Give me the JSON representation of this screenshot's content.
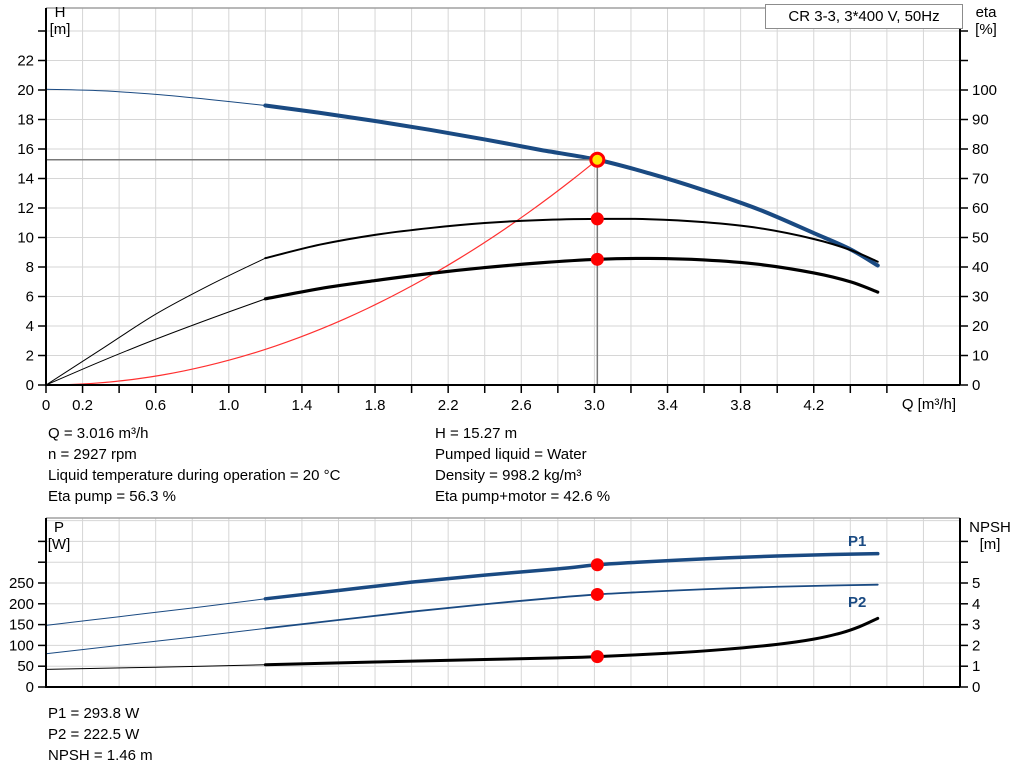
{
  "title_box": "CR 3-3, 3*400 V, 50Hz",
  "colors": {
    "curve_blue": "#1a4a82",
    "curve_black": "#000000",
    "curve_red": "#ff3030",
    "marker_red": "#ff0000",
    "marker_yellow": "#ffe600",
    "grid": "#d6d6d6",
    "axis": "#000000",
    "plot_top_border": "#a0a0a0",
    "crosshair": "#787878",
    "label_blue": "#1a4a82"
  },
  "chart_data": [
    {
      "type": "line",
      "name": "qh-eta-chart",
      "title": "CR 3-3, 3*400 V, 50Hz",
      "x_axis": {
        "label": "Q [m³/h]",
        "min": 0,
        "max": 5,
        "tick_step": 0.2,
        "tick_end": 4.6,
        "grid_step": 0.2,
        "grid_end": 4.8,
        "labeled_values": [
          0,
          0.2,
          0.6,
          1.0,
          1.4,
          1.8,
          2.2,
          2.6,
          3.0,
          3.4,
          3.8,
          4.2
        ],
        "labeled_ticks": [
          "0",
          "0.2",
          "0.6",
          "1.0",
          "1.4",
          "1.8",
          "2.2",
          "2.6",
          "3.0",
          "3.4",
          "3.8",
          "4.2"
        ]
      },
      "left_axis": {
        "label_line1": "H",
        "label_line2": "[m]",
        "min": 0,
        "tick_step": 2,
        "last_labeled": 22,
        "tick_max": 24,
        "grid_max": 24
      },
      "right_axis": {
        "label_line1": "eta",
        "label_line2": "[%]",
        "min": 0,
        "tick_step": 10,
        "last_labeled": 100,
        "tick_max": 120,
        "grid_max": 0
      },
      "series": [
        {
          "name": "system-curve",
          "axis": "left",
          "color_key": "curve_red",
          "width": 1.2,
          "quadratic_through": {
            "q": 3.016,
            "h": 15.27
          }
        },
        {
          "name": "qh-curve",
          "axis": "left",
          "color_key": "curve_blue",
          "width": 4,
          "thin_until": 1.2,
          "points": [
            [
              0,
              20.05
            ],
            [
              0.3,
              19.95
            ],
            [
              0.6,
              19.7
            ],
            [
              0.9,
              19.35
            ],
            [
              1.2,
              18.95
            ],
            [
              1.5,
              18.45
            ],
            [
              1.8,
              17.9
            ],
            [
              2.1,
              17.3
            ],
            [
              2.4,
              16.65
            ],
            [
              2.7,
              15.95
            ],
            [
              3.016,
              15.27
            ],
            [
              3.3,
              14.35
            ],
            [
              3.6,
              13.2
            ],
            [
              3.9,
              11.9
            ],
            [
              4.2,
              10.3
            ],
            [
              4.4,
              9.2
            ],
            [
              4.55,
              8.1
            ]
          ]
        },
        {
          "name": "eta-pump-curve",
          "axis": "right",
          "color_key": "curve_black",
          "width": 2,
          "thin_until": 1.2,
          "points": [
            [
              0,
              0
            ],
            [
              0.3,
              12
            ],
            [
              0.6,
              24
            ],
            [
              0.9,
              34
            ],
            [
              1.2,
              43
            ],
            [
              1.5,
              47.6
            ],
            [
              1.8,
              50.9
            ],
            [
              2.1,
              53.2
            ],
            [
              2.4,
              54.9
            ],
            [
              2.7,
              55.9
            ],
            [
              3.016,
              56.3
            ],
            [
              3.3,
              56.2
            ],
            [
              3.6,
              55.2
            ],
            [
              3.9,
              53.2
            ],
            [
              4.2,
              49.5
            ],
            [
              4.4,
              45.8
            ],
            [
              4.55,
              41.8
            ]
          ]
        },
        {
          "name": "eta-pump-motor-curve",
          "axis": "right",
          "color_key": "curve_black",
          "width": 3.2,
          "thin_until": 1.2,
          "points": [
            [
              0,
              0
            ],
            [
              0.3,
              8
            ],
            [
              0.6,
              15.5
            ],
            [
              0.9,
              22.5
            ],
            [
              1.2,
              29.2
            ],
            [
              1.5,
              32.7
            ],
            [
              1.8,
              35.4
            ],
            [
              2.1,
              37.8
            ],
            [
              2.4,
              39.8
            ],
            [
              2.7,
              41.4
            ],
            [
              3.016,
              42.6
            ],
            [
              3.3,
              42.9
            ],
            [
              3.6,
              42.4
            ],
            [
              3.9,
              40.9
            ],
            [
              4.2,
              38
            ],
            [
              4.4,
              35
            ],
            [
              4.55,
              31.5
            ]
          ]
        }
      ],
      "operating_point": {
        "q": 3.016,
        "h": 15.27
      },
      "marker_points": [
        {
          "q": 3.016,
          "value": 56.3,
          "axis": "right"
        },
        {
          "q": 3.016,
          "value": 42.6,
          "axis": "right"
        }
      ]
    },
    {
      "type": "line",
      "name": "power-npsh-chart",
      "x_axis": {
        "label": "",
        "min": 0,
        "max": 5,
        "grid_step": 0.2,
        "grid_end": 4.8,
        "labeled_values": [],
        "labeled_ticks": []
      },
      "left_axis": {
        "label_line1": "P",
        "label_line2": "[W]",
        "min": 0,
        "tick_step": 50,
        "last_labeled": 250,
        "tick_max": 350,
        "grid_max": 400
      },
      "right_axis": {
        "label_line1": "NPSH",
        "label_line2": "[m]",
        "min": 0,
        "tick_step": 1,
        "last_labeled": 5,
        "tick_max": 7,
        "grid_max": 0
      },
      "series": [
        {
          "name": "p1-curve",
          "label": "P1",
          "axis": "left",
          "color_key": "curve_blue",
          "width": 3.5,
          "thin_until": 1.2,
          "points": [
            [
              0,
              148
            ],
            [
              0.4,
              169
            ],
            [
              0.8,
              190
            ],
            [
              1.2,
              212
            ],
            [
              1.6,
              232
            ],
            [
              2.0,
              252
            ],
            [
              2.4,
              269
            ],
            [
              2.8,
              284
            ],
            [
              3.016,
              293.8
            ],
            [
              3.2,
              299
            ],
            [
              3.6,
              308
            ],
            [
              4.0,
              315
            ],
            [
              4.3,
              318.5
            ],
            [
              4.55,
              320.5
            ]
          ]
        },
        {
          "name": "p2-curve",
          "label": "P2",
          "axis": "left",
          "color_key": "curve_blue",
          "width": 1.8,
          "thin_until": 1.2,
          "points": [
            [
              0,
              80
            ],
            [
              0.4,
              100
            ],
            [
              0.8,
              120
            ],
            [
              1.2,
              141
            ],
            [
              1.6,
              161
            ],
            [
              2.0,
              181
            ],
            [
              2.4,
              199
            ],
            [
              2.8,
              215
            ],
            [
              3.016,
              222.5
            ],
            [
              3.2,
              227
            ],
            [
              3.6,
              235
            ],
            [
              4.0,
              241
            ],
            [
              4.3,
              244
            ],
            [
              4.55,
              246
            ]
          ]
        },
        {
          "name": "npsh-curve",
          "axis": "right",
          "color_key": "curve_black",
          "width": 3,
          "thin_until": 1.2,
          "points": [
            [
              0,
              0.85
            ],
            [
              0.6,
              0.95
            ],
            [
              1.2,
              1.07
            ],
            [
              1.8,
              1.2
            ],
            [
              2.4,
              1.32
            ],
            [
              2.8,
              1.4
            ],
            [
              3.016,
              1.46
            ],
            [
              3.4,
              1.62
            ],
            [
              3.7,
              1.8
            ],
            [
              4.0,
              2.05
            ],
            [
              4.2,
              2.3
            ],
            [
              4.35,
              2.6
            ],
            [
              4.45,
              2.9
            ],
            [
              4.55,
              3.3
            ]
          ]
        }
      ],
      "marker_points": [
        {
          "q": 3.016,
          "value": 293.8,
          "axis": "left"
        },
        {
          "q": 3.016,
          "value": 222.5,
          "axis": "left"
        },
        {
          "q": 3.016,
          "value": 1.46,
          "axis": "right"
        }
      ],
      "series_labels": {
        "p1": "P1",
        "p2": "P2"
      }
    }
  ],
  "info_top": {
    "left": [
      "Q = 3.016 m³/h",
      "n = 2927 rpm",
      "Liquid temperature during operation = 20 °C",
      "Eta pump = 56.3 %"
    ],
    "right": [
      "H = 15.27 m",
      "Pumped liquid = Water",
      "Density = 998.2 kg/m³",
      "Eta pump+motor = 42.6 %"
    ]
  },
  "info_bottom": [
    "P1 = 293.8 W",
    "P2 = 222.5 W",
    "NPSH = 1.46 m"
  ]
}
